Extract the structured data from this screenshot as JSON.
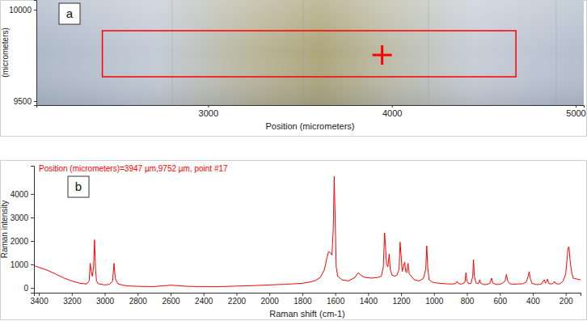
{
  "chart_data": [
    {
      "type": "image",
      "panel_label": "a",
      "xlabel": "Position (micrometers)",
      "ylabel": "(micrometers)",
      "xlim": [
        2066,
        5044
      ],
      "ylim": [
        9478,
        10053
      ],
      "xticks": [
        3000,
        4000,
        5000
      ],
      "yticks": [
        9500,
        10000
      ],
      "scan_area": {
        "x": [
          2425,
          4675
        ],
        "y": [
          9633,
          9885
        ]
      },
      "point": {
        "x": 3947,
        "y": 9752
      },
      "color": "#ff0000"
    },
    {
      "type": "line",
      "panel_label": "b",
      "annotation": "Position (micrometers)=3947 µm,9752 µm, point #17",
      "xlabel": "Raman shift (cm-1)",
      "ylabel": "Raman intensity",
      "xlim": [
        3430,
        110
      ],
      "ylim": [
        -200,
        5200
      ],
      "xticks": [
        3400,
        3200,
        3000,
        2800,
        2600,
        2400,
        2200,
        2000,
        1800,
        1600,
        1400,
        1200,
        1000,
        800,
        600,
        400,
        200
      ],
      "yticks": [
        0,
        1000,
        2000,
        3000,
        4000
      ],
      "color": "#ff0000",
      "x": [
        3430,
        3400,
        3350,
        3300,
        3250,
        3200,
        3150,
        3110,
        3095,
        3088,
        3082,
        3075,
        3068,
        3062,
        3056,
        3050,
        3040,
        3000,
        2970,
        2952,
        2944,
        2936,
        2920,
        2890,
        2860,
        2800,
        2700,
        2600,
        2500,
        2400,
        2300,
        2200,
        2100,
        2000,
        1900,
        1800,
        1750,
        1720,
        1690,
        1665,
        1650,
        1640,
        1630,
        1620,
        1612,
        1606,
        1600,
        1594,
        1585,
        1560,
        1520,
        1480,
        1460,
        1445,
        1420,
        1380,
        1340,
        1320,
        1308,
        1300,
        1294,
        1288,
        1280,
        1272,
        1266,
        1255,
        1240,
        1225,
        1212,
        1206,
        1200,
        1193,
        1186,
        1178,
        1172,
        1166,
        1158,
        1150,
        1120,
        1090,
        1065,
        1050,
        1044,
        1038,
        1030,
        1010,
        990,
        960,
        930,
        900,
        870,
        860,
        850,
        830,
        812,
        806,
        800,
        790,
        775,
        765,
        760,
        755,
        745,
        730,
        722,
        716,
        700,
        680,
        660,
        650,
        642,
        620,
        600,
        585,
        568,
        560,
        552,
        540,
        520,
        490,
        460,
        440,
        428,
        422,
        415,
        405,
        380,
        360,
        345,
        336,
        330,
        324,
        318,
        310,
        304,
        290,
        275,
        268,
        262,
        245,
        230,
        215,
        200,
        192,
        186,
        180,
        174,
        165,
        155,
        145,
        130,
        115,
        110
      ],
      "values": [
        950,
        880,
        760,
        600,
        430,
        300,
        200,
        170,
        300,
        1050,
        700,
        500,
        900,
        2050,
        800,
        300,
        180,
        130,
        160,
        300,
        1050,
        400,
        180,
        120,
        90,
        70,
        60,
        120,
        70,
        60,
        60,
        80,
        100,
        130,
        160,
        200,
        260,
        320,
        450,
        800,
        1300,
        1550,
        1500,
        1400,
        2500,
        4750,
        2800,
        900,
        500,
        350,
        300,
        450,
        650,
        550,
        450,
        420,
        450,
        500,
        900,
        2350,
        1700,
        1000,
        900,
        1450,
        800,
        550,
        500,
        550,
        800,
        1950,
        1400,
        700,
        900,
        1100,
        700,
        650,
        1050,
        600,
        350,
        300,
        400,
        800,
        1800,
        900,
        350,
        250,
        220,
        200,
        180,
        170,
        180,
        280,
        180,
        170,
        250,
        650,
        300,
        180,
        200,
        500,
        1200,
        500,
        220,
        180,
        350,
        200,
        150,
        150,
        200,
        420,
        200,
        150,
        160,
        200,
        300,
        580,
        300,
        180,
        160,
        170,
        180,
        250,
        500,
        700,
        400,
        200,
        150,
        150,
        180,
        300,
        350,
        200,
        250,
        380,
        200,
        170,
        200,
        280,
        200,
        160,
        200,
        300,
        600,
        1200,
        1700,
        1750,
        1200,
        700,
        420,
        400,
        380,
        350,
        350
      ]
    }
  ]
}
